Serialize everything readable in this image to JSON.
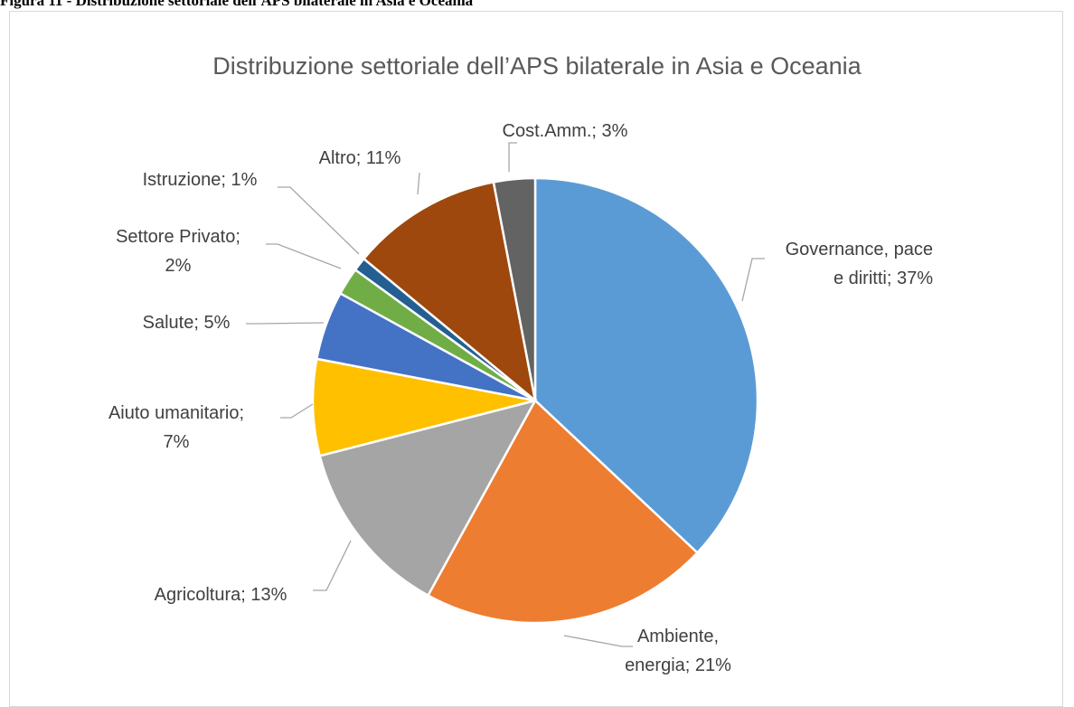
{
  "page": {
    "caption": "Figura 11 - Distribuzione settoriale dell'APS bilaterale in Asia e Oceania"
  },
  "chart_data": {
    "type": "pie",
    "title": "Distribuzione settoriale dell’APS bilaterale  in Asia e Oceania",
    "slices": [
      {
        "label": "Governance, pace e diritti; 37%",
        "category": "Governance, pace e diritti",
        "value": 37,
        "color": "#5b9bd5"
      },
      {
        "label": "Ambiente, energia; 21%",
        "category": "Ambiente, energia",
        "value": 21,
        "color": "#ed7d31"
      },
      {
        "label": "Agricoltura; 13%",
        "category": "Agricoltura",
        "value": 13,
        "color": "#a5a5a5"
      },
      {
        "label": "Aiuto umanitario; 7%",
        "category": "Aiuto umanitario",
        "value": 7,
        "color": "#ffc000"
      },
      {
        "label": "Salute; 5%",
        "category": "Salute",
        "value": 5,
        "color": "#4472c4"
      },
      {
        "label": "Settore Privato; 2%",
        "category": "Settore Privato",
        "value": 2,
        "color": "#70ad47"
      },
      {
        "label": "Istruzione; 1%",
        "category": "Istruzione",
        "value": 1,
        "color": "#255e91"
      },
      {
        "label": "Altro; 11%",
        "category": "Altro",
        "value": 11,
        "color": "#9e480e"
      },
      {
        "label": "Cost.Amm.; 3%",
        "category": "Cost.Amm.",
        "value": 3,
        "color": "#636363"
      }
    ],
    "legend": "none",
    "data_labels": "outside with leader lines"
  }
}
